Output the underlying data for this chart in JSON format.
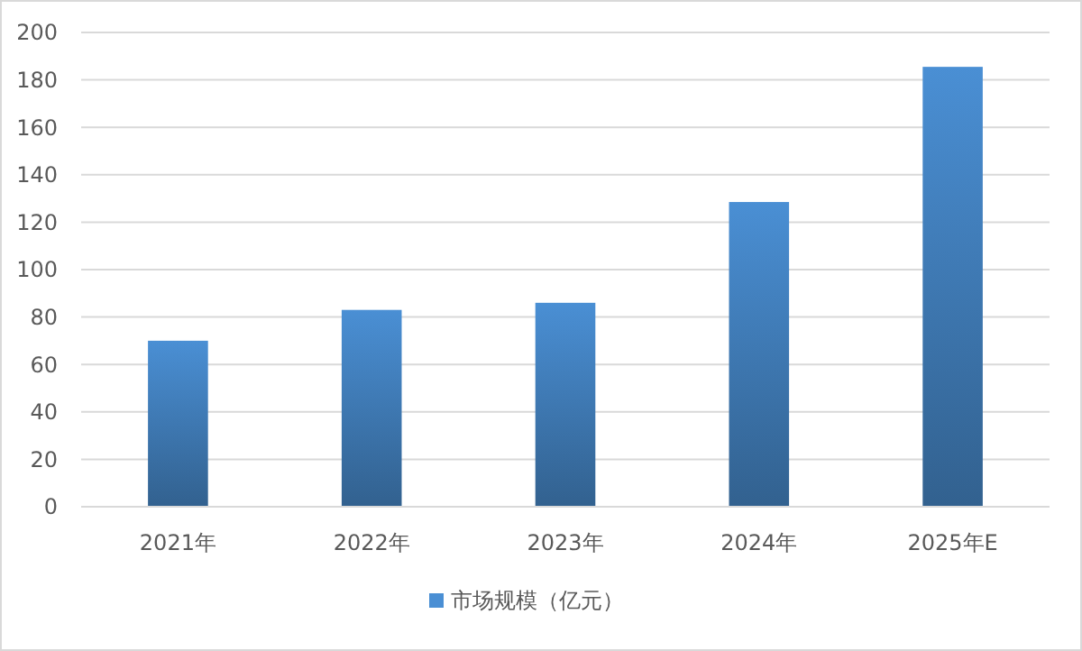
{
  "chart_data": {
    "type": "bar",
    "categories": [
      "2021年",
      "2022年",
      "2023年",
      "2024年",
      "2025年E"
    ],
    "series": [
      {
        "name": "市场规模（亿元）",
        "color": "#4a8fd4",
        "values": [
          70,
          83,
          86,
          128.5,
          185.5
        ]
      }
    ],
    "ylim": [
      0,
      200
    ],
    "yticks": [
      0,
      20,
      40,
      60,
      80,
      100,
      120,
      140,
      160,
      180,
      200
    ],
    "grid": "y",
    "legend": "bottom"
  }
}
